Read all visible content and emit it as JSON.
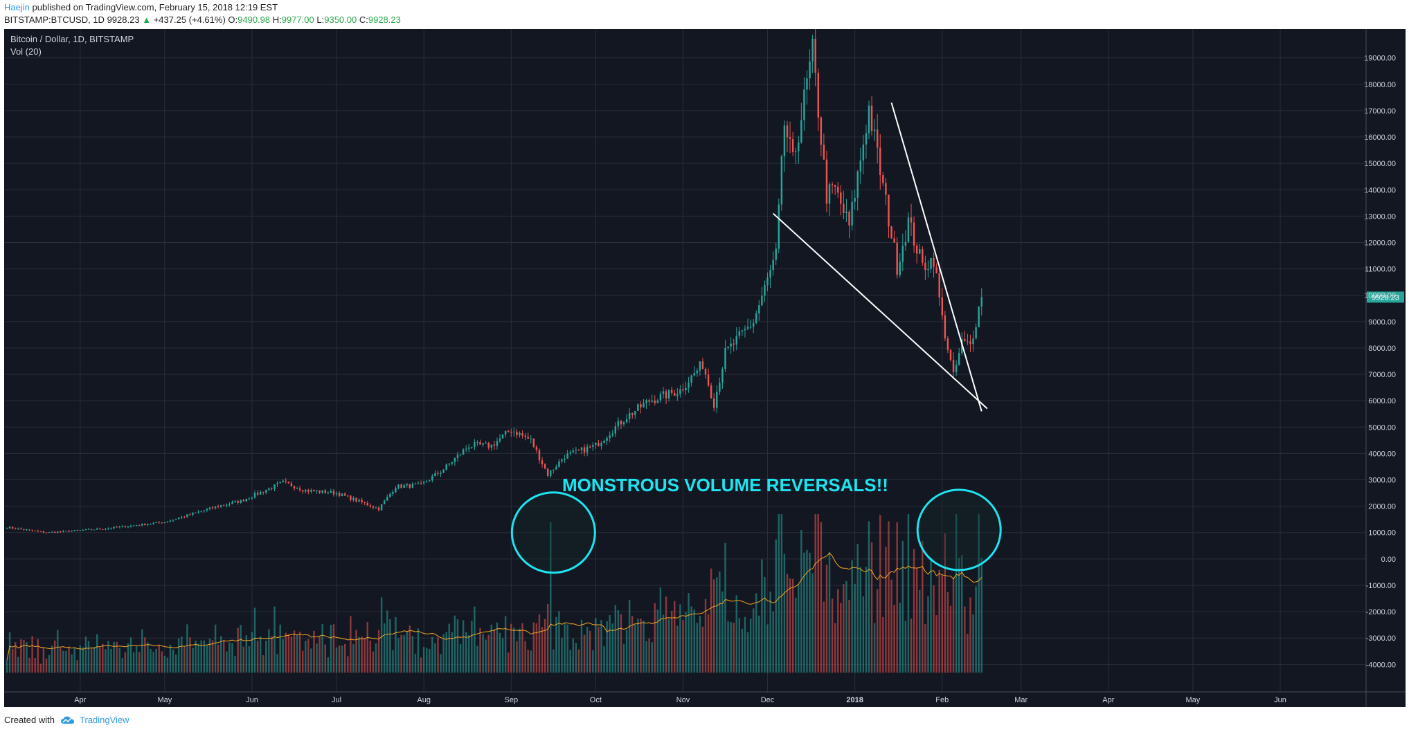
{
  "header": {
    "user": "Haejin",
    "published": "published on TradingView.com, February 15, 2018 12:19 EST",
    "symbol": "BITSTAMP:BTCUSD, 1D",
    "last": "9928.23",
    "up_arrow": "▲",
    "change": "+437.25 (+4.61%)",
    "o_label": "O:",
    "o_value": "9490.98",
    "h_label": "H:",
    "h_value": "9977.00",
    "l_label": "L:",
    "l_value": "9350.00",
    "c_label": "C:",
    "c_value": "9928.23"
  },
  "chart": {
    "title": "Bitcoin / Dollar, 1D, BITSTAMP",
    "indicator": "Vol (20)",
    "annotation": "MONSTROUS VOLUME REVERSALS!!",
    "last_price_label": "9928.23"
  },
  "footer": {
    "created_with": "Created with",
    "brand": "TradingView"
  },
  "colors": {
    "background": "#131722",
    "up": "#26a69a",
    "down": "#ef5350",
    "annotation": "#1ee3f0",
    "trendline": "#ffffff",
    "volume_ma": "#f5a623"
  },
  "chart_data": {
    "type": "candlestick",
    "title": "Bitcoin / Dollar, 1D, BITSTAMP",
    "y_axis_ticks": [
      19000,
      18000,
      17000,
      16000,
      15000,
      14000,
      13000,
      12000,
      11000,
      10000,
      9000,
      8000,
      7000,
      6000,
      5000,
      4000,
      3000,
      2000,
      1000,
      0,
      -1000,
      -2000,
      -3000,
      -4000
    ],
    "y_tick_labels": [
      "19000.00",
      "18000.00",
      "17000.00",
      "16000.00",
      "15000.00",
      "14000.00",
      "13000.00",
      "12000.00",
      "11000.00",
      "10000.00",
      "9000.00",
      "8000.00",
      "7000.00",
      "6000.00",
      "5000.00",
      "4000.00",
      "3000.00",
      "2000.00",
      "1000.00",
      "0.00",
      "-1000.00",
      "-2000.00",
      "-3000.00",
      "-4000.00"
    ],
    "ylim": [
      -4700,
      19700
    ],
    "x_axis_labels": [
      {
        "label": "Apr",
        "date": "2017-04-01"
      },
      {
        "label": "May",
        "date": "2017-05-01"
      },
      {
        "label": "Jun",
        "date": "2017-06-01"
      },
      {
        "label": "Jul",
        "date": "2017-07-01"
      },
      {
        "label": "Aug",
        "date": "2017-08-01"
      },
      {
        "label": "Sep",
        "date": "2017-09-01"
      },
      {
        "label": "Oct",
        "date": "2017-10-01"
      },
      {
        "label": "Nov",
        "date": "2017-11-01"
      },
      {
        "label": "Dec",
        "date": "2017-12-01"
      },
      {
        "label": "2018",
        "date": "2018-01-01"
      },
      {
        "label": "Feb",
        "date": "2018-02-01"
      },
      {
        "label": "Mar",
        "date": "2018-03-01"
      },
      {
        "label": "Apr",
        "date": "2018-04-01"
      },
      {
        "label": "May",
        "date": "2018-05-01"
      },
      {
        "label": "Jun",
        "date": "2018-06-01"
      }
    ],
    "x_range": [
      "2017-03-06",
      "2018-06-30"
    ],
    "price_keypoints": [
      {
        "date": "2017-03-06",
        "close": 1200
      },
      {
        "date": "2017-03-20",
        "close": 1000
      },
      {
        "date": "2017-04-10",
        "close": 1150
      },
      {
        "date": "2017-05-01",
        "close": 1400
      },
      {
        "date": "2017-05-20",
        "close": 2000
      },
      {
        "date": "2017-05-28",
        "close": 2200
      },
      {
        "date": "2017-06-12",
        "close": 2900
      },
      {
        "date": "2017-06-20",
        "close": 2600
      },
      {
        "date": "2017-07-01",
        "close": 2500
      },
      {
        "date": "2017-07-16",
        "close": 1900
      },
      {
        "date": "2017-07-22",
        "close": 2750
      },
      {
        "date": "2017-07-31",
        "close": 2800
      },
      {
        "date": "2017-08-08",
        "close": 3400
      },
      {
        "date": "2017-08-17",
        "close": 4300
      },
      {
        "date": "2017-08-25",
        "close": 4300
      },
      {
        "date": "2017-09-01",
        "close": 4900
      },
      {
        "date": "2017-09-08",
        "close": 4500
      },
      {
        "date": "2017-09-14",
        "close": 3200
      },
      {
        "date": "2017-09-20",
        "close": 3900
      },
      {
        "date": "2017-10-01",
        "close": 4300
      },
      {
        "date": "2017-10-12",
        "close": 5400
      },
      {
        "date": "2017-10-20",
        "close": 6000
      },
      {
        "date": "2017-10-31",
        "close": 6400
      },
      {
        "date": "2017-11-08",
        "close": 7400
      },
      {
        "date": "2017-11-12",
        "close": 5900
      },
      {
        "date": "2017-11-16",
        "close": 7800
      },
      {
        "date": "2017-11-26",
        "close": 9000
      },
      {
        "date": "2017-12-04",
        "close": 11500
      },
      {
        "date": "2017-12-07",
        "close": 16500
      },
      {
        "date": "2017-12-10",
        "close": 15000
      },
      {
        "date": "2017-12-17",
        "close": 19200
      },
      {
        "date": "2017-12-22",
        "close": 13800
      },
      {
        "date": "2017-12-25",
        "close": 14000
      },
      {
        "date": "2017-12-30",
        "close": 12600
      },
      {
        "date": "2018-01-06",
        "close": 17100
      },
      {
        "date": "2018-01-16",
        "close": 11100
      },
      {
        "date": "2018-01-20",
        "close": 12800
      },
      {
        "date": "2018-01-25",
        "close": 11100
      },
      {
        "date": "2018-01-29",
        "close": 11400
      },
      {
        "date": "2018-02-01",
        "close": 9100
      },
      {
        "date": "2018-02-05",
        "close": 6900
      },
      {
        "date": "2018-02-08",
        "close": 8200
      },
      {
        "date": "2018-02-11",
        "close": 8100
      },
      {
        "date": "2018-02-14",
        "close": 9500
      },
      {
        "date": "2018-02-15",
        "close": 9928.23
      }
    ],
    "last_candle": {
      "date": "2018-02-15",
      "open": 9490.98,
      "high": 9977.0,
      "low": 9350.0,
      "close": 9928.23
    },
    "volume_spikes": [
      {
        "date": "2017-09-15",
        "value": 0.95
      },
      {
        "date": "2018-02-06",
        "value": 1.0
      },
      {
        "date": "2017-12-22",
        "value": 0.68
      },
      {
        "date": "2018-02-05",
        "value": 0.6
      },
      {
        "date": "2018-01-29",
        "value": 0.55
      }
    ],
    "trendlines": [
      {
        "from": {
          "date": "2017-12-03",
          "price": 13100
        },
        "to": {
          "date": "2018-02-17",
          "price": 5700
        }
      },
      {
        "from": {
          "date": "2018-01-14",
          "price": 17300
        },
        "to": {
          "date": "2018-02-15",
          "price": 5600
        }
      }
    ],
    "circles": [
      {
        "center_date": "2017-09-16",
        "center_price": 1000
      },
      {
        "center_date": "2018-02-07",
        "center_price": 1100
      }
    ],
    "grid": true,
    "legend": "top-left"
  }
}
